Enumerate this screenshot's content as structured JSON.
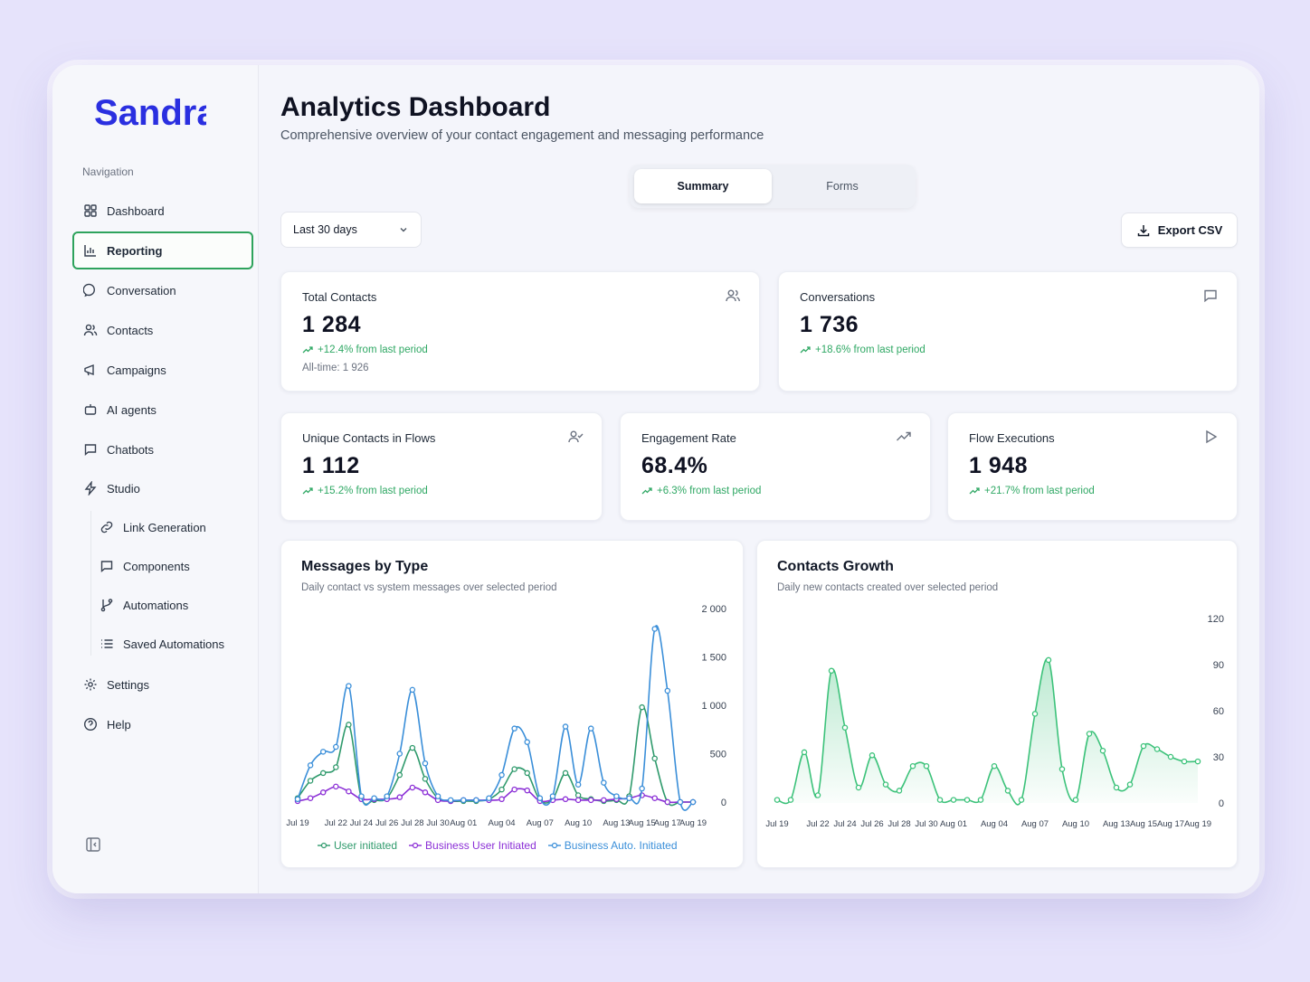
{
  "brand": {
    "name": "Sandra",
    "color": "#2a2fe0"
  },
  "sidebar": {
    "caption": "Navigation",
    "items": [
      {
        "label": "Dashboard",
        "icon": "grid-icon"
      },
      {
        "label": "Reporting",
        "icon": "bar-chart-icon",
        "active": true
      },
      {
        "label": "Conversation",
        "icon": "chat-bubble-icon"
      },
      {
        "label": "Contacts",
        "icon": "users-icon"
      },
      {
        "label": "Campaigns",
        "icon": "megaphone-icon"
      },
      {
        "label": "AI agents",
        "icon": "bot-icon"
      },
      {
        "label": "Chatbots",
        "icon": "message-square-icon"
      },
      {
        "label": "Studio",
        "icon": "zap-icon"
      }
    ],
    "studio_items": [
      {
        "label": "Link Generation",
        "icon": "link-icon"
      },
      {
        "label": "Components",
        "icon": "message-square-icon"
      },
      {
        "label": "Automations",
        "icon": "git-branch-icon"
      },
      {
        "label": "Saved Automations",
        "icon": "list-icon"
      }
    ],
    "footer_items": [
      {
        "label": "Settings",
        "icon": "gear-icon"
      },
      {
        "label": "Help",
        "icon": "help-circle-icon"
      }
    ]
  },
  "header": {
    "title": "Analytics Dashboard",
    "subtitle": "Comprehensive overview of your contact engagement and messaging performance"
  },
  "tabs": [
    {
      "label": "Summary",
      "active": true
    },
    {
      "label": "Forms",
      "active": false
    }
  ],
  "filters": {
    "period": "Last 30 days",
    "export_label": "Export CSV"
  },
  "stats": {
    "total_contacts": {
      "label": "Total Contacts",
      "value": "1 284",
      "delta": "+12.4% from last period",
      "extra": "All-time: 1 926",
      "icon": "users-icon"
    },
    "conversations": {
      "label": "Conversations",
      "value": "1 736",
      "delta": "+18.6% from last period",
      "icon": "message-square-icon"
    },
    "unique_contacts": {
      "label": "Unique Contacts in Flows",
      "value": "1 112",
      "delta": "+15.2% from last period",
      "icon": "user-check-icon"
    },
    "engagement": {
      "label": "Engagement Rate",
      "value": "68.4%",
      "delta": "+6.3% from last period",
      "icon": "trending-up-icon"
    },
    "flow_exec": {
      "label": "Flow Executions",
      "value": "1 948",
      "delta": "+21.7% from last period",
      "icon": "play-icon"
    }
  },
  "colors": {
    "accent_green": "#2fa864",
    "series_user": "#2f9a6c",
    "series_business_user": "#8b2fd6",
    "series_business_auto": "#3b8fd9",
    "growth": "#3cc27a"
  },
  "chart_data": [
    {
      "type": "line",
      "title": "Messages by Type",
      "subtitle": "Daily contact vs system messages over selected period",
      "x": [
        "Jul 19",
        "Jul 20",
        "Jul 21",
        "Jul 22",
        "Jul 23",
        "Jul 24",
        "Jul 25",
        "Jul 26",
        "Jul 27",
        "Jul 28",
        "Jul 29",
        "Jul 30",
        "Jul 31",
        "Aug 01",
        "Aug 02",
        "Aug 03",
        "Aug 04",
        "Aug 05",
        "Aug 06",
        "Aug 07",
        "Aug 08",
        "Aug 09",
        "Aug 10",
        "Aug 11",
        "Aug 12",
        "Aug 13",
        "Aug 14",
        "Aug 15",
        "Aug 16",
        "Aug 17",
        "Aug 18",
        "Aug 19"
      ],
      "x_tick_labels": [
        "Jul 19",
        "Jul 22",
        "Jul 24",
        "Jul 26",
        "Jul 28",
        "Jul 30",
        "Aug 01",
        "Aug 04",
        "Aug 07",
        "Aug 10",
        "Aug 13",
        "Aug 15",
        "Aug 17",
        "Aug 19"
      ],
      "ylim": [
        0,
        2000
      ],
      "y_ticks": [
        "0",
        "500",
        "1 000",
        "1 500",
        "2 000"
      ],
      "legend_position": "bottom",
      "series": [
        {
          "name": "User initiated",
          "values": [
            40,
            220,
            300,
            360,
            800,
            40,
            20,
            40,
            280,
            560,
            240,
            40,
            10,
            10,
            10,
            30,
            130,
            340,
            300,
            20,
            30,
            300,
            70,
            30,
            10,
            20,
            60,
            980,
            450,
            0,
            0,
            0
          ]
        },
        {
          "name": "Business User Initiated",
          "values": [
            10,
            40,
            100,
            160,
            110,
            30,
            30,
            30,
            50,
            150,
            100,
            20,
            10,
            20,
            20,
            20,
            30,
            130,
            120,
            10,
            20,
            30,
            20,
            20,
            20,
            30,
            40,
            70,
            40,
            0,
            0,
            0
          ]
        },
        {
          "name": "Business Auto. Initiated",
          "values": [
            30,
            380,
            520,
            570,
            1200,
            60,
            40,
            60,
            500,
            1160,
            400,
            60,
            20,
            20,
            20,
            40,
            280,
            760,
            620,
            40,
            60,
            780,
            180,
            760,
            200,
            60,
            40,
            140,
            1790,
            1150,
            0,
            0
          ]
        }
      ]
    },
    {
      "type": "area",
      "title": "Contacts Growth",
      "subtitle": "Daily new contacts created over selected period",
      "x": [
        "Jul 19",
        "Jul 20",
        "Jul 21",
        "Jul 22",
        "Jul 23",
        "Jul 24",
        "Jul 25",
        "Jul 26",
        "Jul 27",
        "Jul 28",
        "Jul 29",
        "Jul 30",
        "Jul 31",
        "Aug 01",
        "Aug 02",
        "Aug 03",
        "Aug 04",
        "Aug 05",
        "Aug 06",
        "Aug 07",
        "Aug 08",
        "Aug 09",
        "Aug 10",
        "Aug 11",
        "Aug 12",
        "Aug 13",
        "Aug 14",
        "Aug 15",
        "Aug 16",
        "Aug 17",
        "Aug 18",
        "Aug 19"
      ],
      "x_tick_labels": [
        "Jul 19",
        "Jul 22",
        "Jul 24",
        "Jul 26",
        "Jul 28",
        "Jul 30",
        "Aug 01",
        "Aug 04",
        "Aug 07",
        "Aug 10",
        "Aug 13",
        "Aug 15",
        "Aug 17",
        "Aug 19"
      ],
      "ylim": [
        0,
        120
      ],
      "y_ticks": [
        "0",
        "30",
        "60",
        "90",
        "120"
      ],
      "series": [
        {
          "name": "",
          "values": [
            2,
            2,
            33,
            5,
            86,
            49,
            10,
            31,
            12,
            8,
            24,
            24,
            2,
            2,
            2,
            2,
            24,
            8,
            2,
            58,
            93,
            22,
            2,
            45,
            34,
            10,
            12,
            37,
            35,
            30,
            27,
            27
          ]
        }
      ]
    }
  ]
}
